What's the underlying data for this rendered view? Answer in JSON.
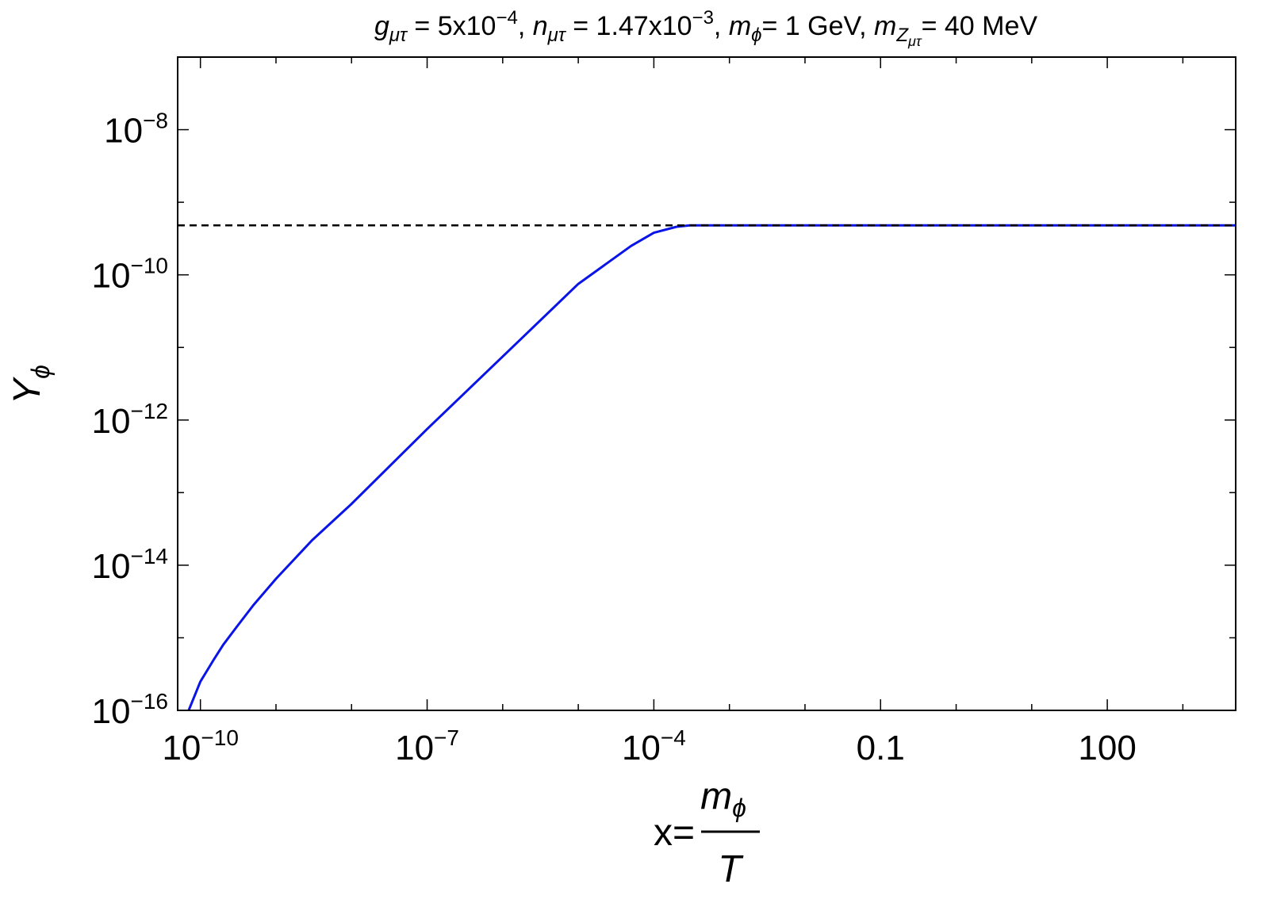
{
  "chart_data": {
    "type": "line",
    "title": {
      "g_sym": "g",
      "g_sub": "μτ",
      "g_eq": " = 5x10",
      "g_exp": "−4",
      "n_sep": ", ",
      "n_sym": "n",
      "n_sub": "μτ",
      "n_eq": " = 1.47x10",
      "n_exp": "−3",
      "m_sep": ", ",
      "mphi_sym": "m",
      "mphi_sub": "ϕ",
      "mphi_eq": "= 1 GeV, ",
      "mz_sym": "m",
      "mz_sub": "Z",
      "mz_subsub": "μτ",
      "mz_eq": "= 40 MeV"
    },
    "xlabel": {
      "prefix": "x=",
      "num_sym": "m",
      "num_sub": "ϕ",
      "den": "T"
    },
    "ylabel": {
      "sym": "Y",
      "sub": "ϕ"
    },
    "x_scale": "log",
    "y_scale": "log",
    "xlim": [
      5e-11,
      5000
    ],
    "ylim": [
      1e-16,
      1e-07
    ],
    "x_ticks": [
      {
        "value": 1e-10,
        "base": "10",
        "exp": "−10"
      },
      {
        "value": 1e-07,
        "base": "10",
        "exp": "−7"
      },
      {
        "value": 0.0001,
        "base": "10",
        "exp": "−4"
      },
      {
        "value": 0.1,
        "base": "0.1",
        "exp": ""
      },
      {
        "value": 100,
        "base": "100",
        "exp": ""
      }
    ],
    "y_ticks": [
      {
        "value": 1e-08,
        "base": "10",
        "exp": "−8"
      },
      {
        "value": 1e-10,
        "base": "10",
        "exp": "−10"
      },
      {
        "value": 1e-12,
        "base": "10",
        "exp": "−12"
      },
      {
        "value": 1e-14,
        "base": "10",
        "exp": "−14"
      },
      {
        "value": 1e-16,
        "base": "10",
        "exp": "−16"
      }
    ],
    "grid": false,
    "series": [
      {
        "style": "solid",
        "color": "#0a14e6",
        "x": [
          7e-11,
          1e-10,
          1.5e-10,
          2e-10,
          3e-10,
          5e-10,
          1e-09,
          3e-09,
          1e-08,
          1e-07,
          1e-06,
          1e-05,
          5e-05,
          0.0001,
          0.0002,
          0.0003,
          0.0005,
          0.001,
          0.01,
          0.1,
          1,
          10,
          100,
          1000,
          5000
        ],
        "y": [
          1e-16,
          2.5e-16,
          5e-16,
          8e-16,
          1.4e-15,
          2.8e-15,
          6.5e-15,
          2.2e-14,
          7e-14,
          7.5e-13,
          7.5e-12,
          7.5e-11,
          2.5e-10,
          3.8e-10,
          4.6e-10,
          4.8e-10,
          4.8e-10,
          4.8e-10,
          4.8e-10,
          4.8e-10,
          4.8e-10,
          4.8e-10,
          4.8e-10,
          4.8e-10,
          4.8e-10
        ]
      },
      {
        "style": "dashed",
        "color": "#000000",
        "x": [
          5e-11,
          5000
        ],
        "y": [
          4.8e-10,
          4.8e-10
        ]
      }
    ]
  }
}
